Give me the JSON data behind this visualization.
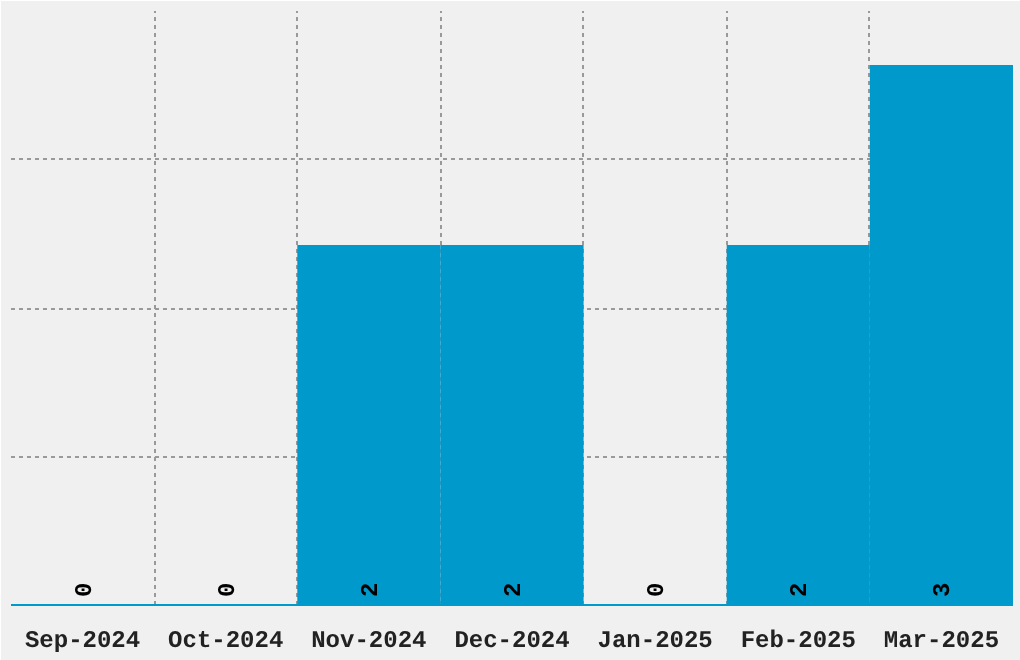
{
  "chart_data": {
    "type": "bar",
    "categories": [
      "Sep-2024",
      "Oct-2024",
      "Nov-2024",
      "Dec-2024",
      "Jan-2025",
      "Feb-2025",
      "Mar-2025"
    ],
    "values": [
      0,
      0,
      2,
      2,
      0,
      2,
      3
    ],
    "color": "#0099cc",
    "ylim": [
      0,
      3.3
    ],
    "yticks": [
      {
        "value": 0.825,
        "label": null
      },
      {
        "value": 1.65,
        "label": null
      },
      {
        "value": 2.475,
        "label": null
      }
    ],
    "tick_labels": "x",
    "grid": true,
    "data_labels": true
  }
}
